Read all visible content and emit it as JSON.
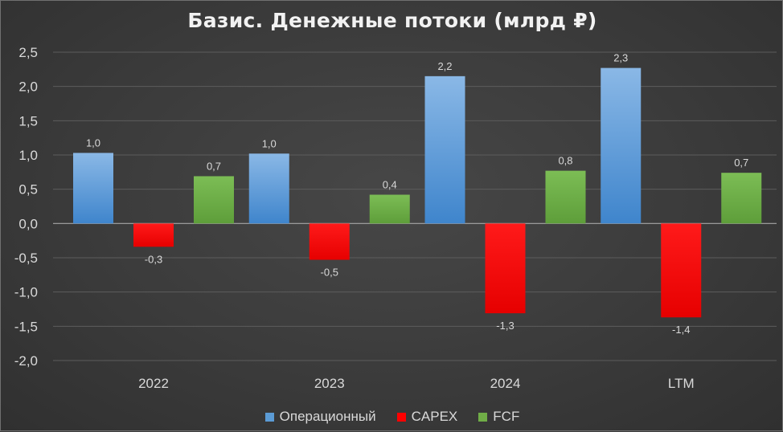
{
  "chart_data": {
    "type": "bar",
    "title": "Базис. Денежные потоки (млрд ₽)",
    "categories": [
      "2022",
      "2023",
      "2024",
      "LTM"
    ],
    "series": [
      {
        "name": "Операционный",
        "values": [
          1.03,
          1.02,
          2.15,
          2.27
        ],
        "labels": [
          "1,0",
          "1,0",
          "2,2",
          "2,3"
        ],
        "color": "#5b9bd5"
      },
      {
        "name": "CAPEX",
        "values": [
          -0.34,
          -0.53,
          -1.31,
          -1.37
        ],
        "labels": [
          "-0,3",
          "-0,5",
          "-1,3",
          "-1,4"
        ],
        "color": "#ff0000"
      },
      {
        "name": "FCF",
        "values": [
          0.69,
          0.42,
          0.77,
          0.74
        ],
        "labels": [
          "0,7",
          "0,4",
          "0,8",
          "0,7"
        ],
        "color": "#70ad47"
      }
    ],
    "ylim": [
      -2.0,
      2.5
    ],
    "yticks": [
      "2,5",
      "2,0",
      "1,5",
      "1,0",
      "0,5",
      "0,0",
      "-0,5",
      "-1,0",
      "-1,5",
      "-2,0"
    ],
    "grid": true,
    "legend_position": "bottom"
  }
}
